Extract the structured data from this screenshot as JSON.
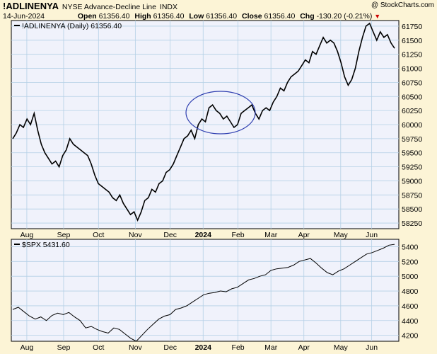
{
  "header": {
    "symbol": "!ADLINENYA",
    "description": "NYSE Advance-Decline Line",
    "exchange": "INDX",
    "watermark": "@ StockCharts.com",
    "date": "14-Jun-2024",
    "open_label": "Open",
    "open": "61356.40",
    "high_label": "High",
    "high": "61356.40",
    "low_label": "Low",
    "low": "61356.40",
    "close_label": "Close",
    "close": "61356.40",
    "chg_label": "Chg",
    "chg": "-130.20 (-0.21%)",
    "down_arrow_icon": "triangle-down-icon"
  },
  "colors": {
    "background": "#fcf4d6",
    "plot_background": "#f0f2fb",
    "grid": "#b4d0e6",
    "line": "#000000",
    "annotation": "#2f3fb0",
    "down": "#cc0000"
  },
  "chart_data": [
    {
      "type": "line",
      "legend": "!ADLINENYA (Daily) 61356.40",
      "legend_placement": "top-left",
      "x_tick_labels": [
        "Aug",
        "Sep",
        "Oct",
        "Nov",
        "Dec",
        "2024",
        "Feb",
        "Mar",
        "Apr",
        "May",
        "Jun"
      ],
      "y_ticks": [
        58250,
        58500,
        58750,
        59000,
        59250,
        59500,
        59750,
        60000,
        60250,
        60500,
        60750,
        61000,
        61250,
        61500,
        61750
      ],
      "ylim": [
        58150,
        61850
      ],
      "grid": true,
      "y_axis_side": "right",
      "series": [
        {
          "name": "!ADLINENYA",
          "values": [
            59750,
            59850,
            60000,
            59950,
            60100,
            60000,
            60200,
            59900,
            59650,
            59500,
            59400,
            59300,
            59350,
            59250,
            59450,
            59550,
            59750,
            59650,
            59600,
            59550,
            59500,
            59450,
            59300,
            59100,
            58950,
            58900,
            58850,
            58800,
            58700,
            58650,
            58750,
            58600,
            58500,
            58400,
            58450,
            58300,
            58450,
            58650,
            58700,
            58850,
            58800,
            58950,
            59000,
            59150,
            59200,
            59300,
            59450,
            59600,
            59750,
            59800,
            59900,
            59750,
            60000,
            60100,
            60050,
            60300,
            60350,
            60250,
            60200,
            60100,
            60150,
            60050,
            59950,
            60000,
            60200,
            60250,
            60300,
            60350,
            60200,
            60100,
            60250,
            60300,
            60250,
            60400,
            60500,
            60650,
            60600,
            60750,
            60850,
            60900,
            60950,
            61050,
            61150,
            61100,
            61300,
            61250,
            61400,
            61550,
            61450,
            61500,
            61450,
            61300,
            61100,
            60850,
            60700,
            60800,
            61000,
            61300,
            61550,
            61750,
            61800,
            61650,
            61500,
            61650,
            61550,
            61600,
            61450,
            61356.4
          ]
        }
      ],
      "annotation": "ellipse"
    },
    {
      "type": "line",
      "legend": "$SPX 5431.60",
      "legend_placement": "top-left",
      "x_tick_labels": [
        "Aug",
        "Sep",
        "Oct",
        "Nov",
        "Dec",
        "2024",
        "Feb",
        "Mar",
        "Apr",
        "May",
        "Jun"
      ],
      "y_ticks": [
        4200,
        4400,
        4600,
        4800,
        5000,
        5200,
        5400
      ],
      "ylim": [
        4120,
        5500
      ],
      "grid": true,
      "y_axis_side": "right",
      "series": [
        {
          "name": "$SPX",
          "values": [
            4550,
            4580,
            4520,
            4460,
            4420,
            4450,
            4400,
            4470,
            4500,
            4480,
            4510,
            4450,
            4400,
            4300,
            4320,
            4280,
            4250,
            4230,
            4300,
            4280,
            4220,
            4160,
            4120,
            4200,
            4280,
            4350,
            4420,
            4460,
            4480,
            4550,
            4570,
            4600,
            4650,
            4700,
            4750,
            4770,
            4780,
            4800,
            4790,
            4830,
            4850,
            4900,
            4950,
            4970,
            5000,
            5020,
            5080,
            5100,
            5110,
            5120,
            5150,
            5200,
            5220,
            5240,
            5180,
            5110,
            5050,
            5020,
            5070,
            5100,
            5150,
            5200,
            5250,
            5300,
            5320,
            5350,
            5380,
            5420,
            5431.6
          ]
        }
      ]
    }
  ]
}
